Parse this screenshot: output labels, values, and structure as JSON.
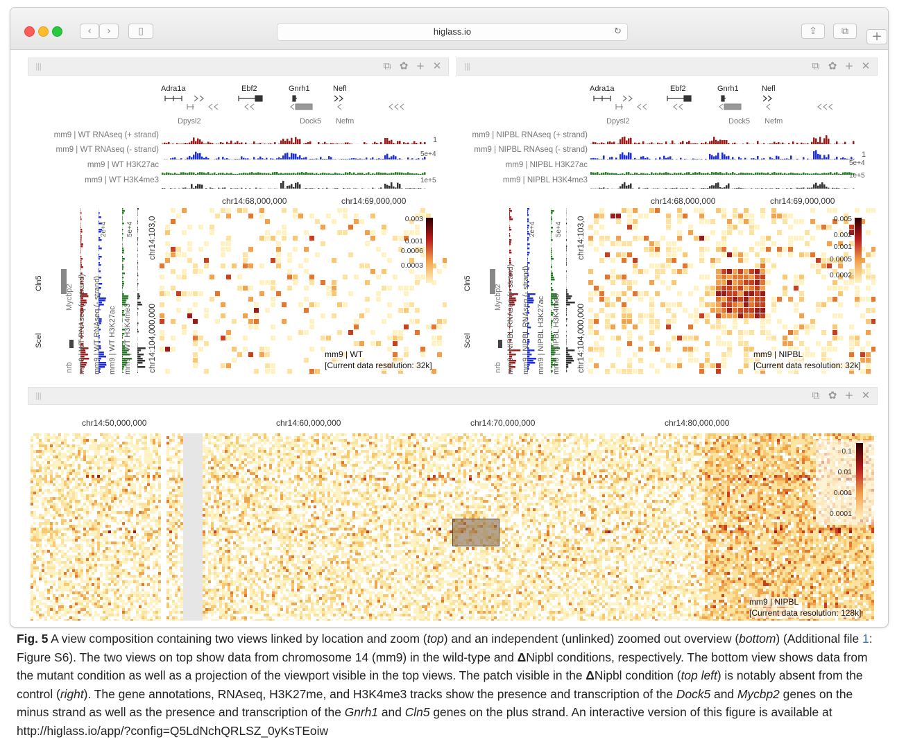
{
  "browser": {
    "url": "higlass.io",
    "back_glyph": "‹",
    "forward_glyph": "›",
    "sidebar_glyph": "▯",
    "reload_glyph": "↻",
    "share_glyph": "⇪",
    "tabs_glyph": "⧉",
    "newtab_glyph": "+"
  },
  "panel_icons": {
    "grip": "|||",
    "copy": "⧉",
    "config": "✿",
    "add": "+",
    "close": "✕"
  },
  "colors": {
    "plus_strand": "#9b1a1a",
    "minus_strand": "#1f2fd6",
    "h3k27ac": "#237b23",
    "h3k4me3": "#333333",
    "heat_low": "#fff3c4",
    "heat_mid": "#f2a24b",
    "heat_high": "#b91c1c",
    "heat_max": "#2b0000"
  },
  "views": [
    {
      "genes": [
        "Adra1a",
        "Ebf2",
        "Gnrh1",
        "Nefl",
        "Dpysl2",
        "Dock5",
        "Nefm"
      ],
      "tracks": [
        "mm9 | WT RNAseq (+ strand)",
        "mm9 | WT RNAseq (- strand)",
        "mm9 | WT H3K27ac",
        "mm9 | WT H3K4me3"
      ],
      "track_scales": [
        "1",
        "5e+4",
        "",
        "1e+5"
      ],
      "x_ticks": [
        "chr14:68,000,000",
        "chr14:69,000,000"
      ],
      "y_ticks": [
        "chr14:103,0",
        "chr14:104,000,000"
      ],
      "vertical_tracks": [
        "mm9 | WT RNAseq (+ strand)",
        "mm9 | WT RNAseq (- strand)",
        "mm9 | WT H3K27ac",
        "mm9 | WT H3K4me3"
      ],
      "vertical_scales": [
        "2e+4",
        "5e+4"
      ],
      "vertical_genes": [
        "Cln5",
        "Mycbp2",
        "Scel",
        "nrb"
      ],
      "legend": [
        "0.003",
        "0.001",
        "0.0006",
        "0.0003"
      ],
      "name": "mm9 | WT",
      "resolution": "[Current data resolution: 32k]"
    },
    {
      "genes": [
        "Adra1a",
        "Ebf2",
        "Gnrh1",
        "Nefl",
        "Dpysl2",
        "Dock5",
        "Nefm"
      ],
      "tracks": [
        "mm9 | NIPBL RNAseq (+ strand)",
        "mm9 | NIPBL RNAseq (- strand)",
        "mm9 | NIPBL H3K27ac",
        "mm9 | NIPBL H3K4me3"
      ],
      "track_scales": [
        "1",
        "5e+4",
        "",
        "1e+5"
      ],
      "x_ticks": [
        "chr14:68,000,000",
        "chr14:69,000,000"
      ],
      "y_ticks": [
        "chr14:103,0",
        "chr14:104,000,000"
      ],
      "vertical_tracks": [
        "mm9 | NIPBL RNAseq (+ strand)",
        "mm9 | NIPBL RNAseq (- strand)",
        "mm9 | NIPBL H3K27ac",
        "mm9 | NIPBL H3K4me3"
      ],
      "vertical_scales": [
        "2e+4",
        "5e+4"
      ],
      "vertical_genes": [
        "Cln5",
        "Mycbp2",
        "Scel",
        "nrb"
      ],
      "legend": [
        "0.005",
        "0.002",
        "0.001",
        "0.0005",
        "0.0002"
      ],
      "name": "mm9 | NIPBL",
      "resolution": "[Current data resolution: 32k]"
    }
  ],
  "overview": {
    "x_ticks": [
      "chr14:50,000,000",
      "chr14:60,000,000",
      "chr14:70,000,000",
      "chr14:80,000,000"
    ],
    "legend": [
      "0.1",
      "0.01",
      "0.001",
      "0.0001"
    ],
    "name": "mm9 | NIPBL",
    "resolution": "[Current data resolution: 128k]"
  },
  "caption": {
    "fig_label": "Fig. 5",
    "t1": " A view composition containing two views linked by location and zoom (",
    "i1": "top",
    "t2": ") and an independent (unlinked) zoomed out overview (",
    "i2": "bottom",
    "t3": ") (Additional file ",
    "link1": "1",
    "t4": ": Figure S6). The two views on top show data from chromosome 14 (mm9) in the wild-type and ",
    "delta1": "Δ",
    "t5": "Nipbl conditions, respectively. The bottom view shows data from the mutant condition as well as a projection of the viewport visible in the top views. The patch visible in the ",
    "delta2": "Δ",
    "t6": "Nipbl condition (",
    "i3": "top left",
    "t7": ") is notably absent from the control (",
    "i4": "right",
    "t8": "). The gene annotations, RNAseq, H3K27me, and H3K4me3 tracks show the presence and transcription of the ",
    "i5": "Dock5",
    "t9": " and ",
    "i6": "Mycbp2",
    "t10": " genes on the minus strand as well as the presence and transcription of the ",
    "i7": "Gnrh1",
    "t11": " and ",
    "i8": "Cln5",
    "t12": " genes on the plus strand. An interactive version of this figure is available at ",
    "url": "http://higlass.io/app/?config=Q5LdNchQRLSZ_0yKsTEoiw"
  }
}
